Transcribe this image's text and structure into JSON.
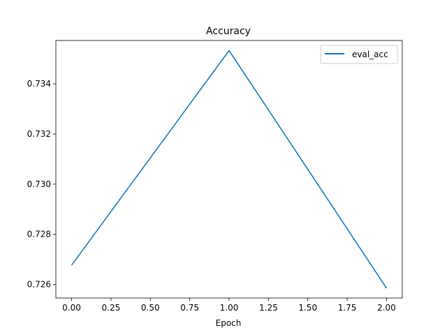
{
  "chart_data": {
    "type": "line",
    "title": "Accuracy",
    "xlabel": "Epoch",
    "ylabel": "",
    "x": [
      0.0,
      1.0,
      2.0
    ],
    "series": [
      {
        "name": "eval_acc",
        "values": [
          0.72677,
          0.73533,
          0.72585
        ],
        "color": "#1f77b4"
      }
    ],
    "xlim": [
      -0.1,
      2.1
    ],
    "ylim": [
      0.72546,
      0.73573
    ],
    "xticks": [
      0.0,
      0.25,
      0.5,
      0.75,
      1.0,
      1.25,
      1.5,
      1.75,
      2.0
    ],
    "xtick_labels": [
      "0.00",
      "0.25",
      "0.50",
      "0.75",
      "1.00",
      "1.25",
      "1.50",
      "1.75",
      "2.00"
    ],
    "yticks": [
      0.726,
      0.728,
      0.73,
      0.732,
      0.734
    ],
    "ytick_labels": [
      "0.726",
      "0.728",
      "0.730",
      "0.732",
      "0.734"
    ],
    "grid": false,
    "legend": "top-right"
  }
}
